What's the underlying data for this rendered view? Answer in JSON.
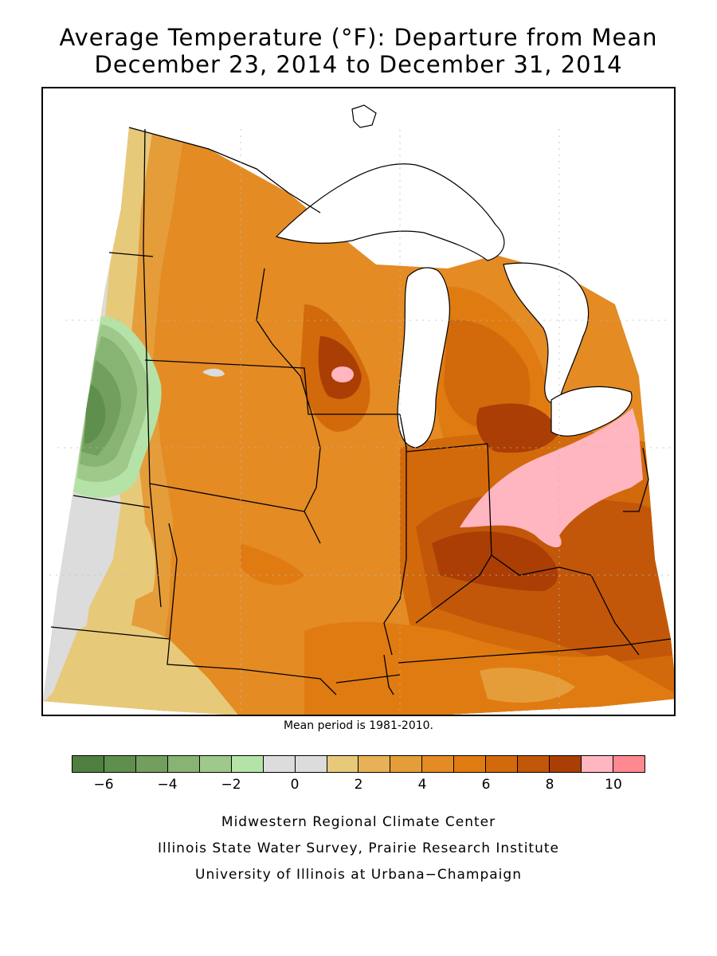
{
  "title_line1": "Average Temperature (°F): Departure from Mean",
  "title_line2": "December 23, 2014 to December 31, 2014",
  "mean_note": "Mean period is 1981-2010.",
  "legend": {
    "colors": [
      "#4f7f3f",
      "#5f8f4c",
      "#739f5e",
      "#87b373",
      "#9fc98b",
      "#b5e2a6",
      "#dcdcdc",
      "#dcdcdc",
      "#e7c97a",
      "#e8b157",
      "#e59d3a",
      "#e48b24",
      "#e07b12",
      "#d26a0b",
      "#c25709",
      "#ab3e05",
      "#ffb6c1",
      "#ff8891"
    ],
    "tick_labels": [
      "−6",
      "−4",
      "−2",
      "0",
      "2",
      "4",
      "6",
      "8",
      "10"
    ]
  },
  "credits": {
    "line1": "Midwestern Regional Climate Center",
    "line2": "Illinois State Water Survey, Prairie Research Institute",
    "line3": "University of Illinois at Urbana−Champaign"
  }
}
